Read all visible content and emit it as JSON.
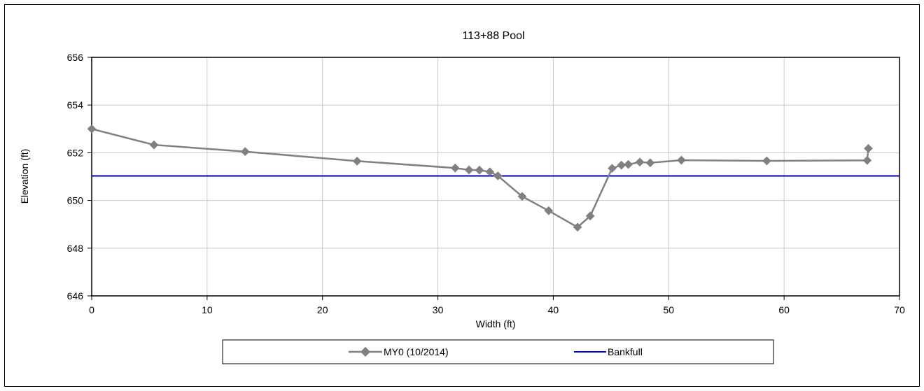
{
  "chart_data": {
    "type": "line",
    "title": "113+88 Pool",
    "xlabel": "Width (ft)",
    "ylabel": "Elevation (ft)",
    "xlim": [
      0,
      70
    ],
    "ylim": [
      646,
      656
    ],
    "xticks": [
      0,
      10,
      20,
      30,
      40,
      50,
      60,
      70
    ],
    "yticks": [
      646,
      648,
      650,
      652,
      654,
      656
    ],
    "grid": true,
    "legend_position": "bottom",
    "series": [
      {
        "name": "MY0 (10/2014)",
        "color": "#808080",
        "marker": "diamond",
        "x": [
          0,
          5.4,
          13.3,
          23.0,
          31.5,
          32.7,
          33.6,
          34.5,
          35.2,
          37.3,
          39.6,
          42.1,
          43.2,
          45.1,
          45.9,
          46.5,
          47.5,
          48.4,
          51.1,
          58.5,
          67.2,
          67.3
        ],
        "y": [
          653.0,
          652.33,
          652.05,
          651.65,
          651.36,
          651.28,
          651.27,
          651.2,
          651.03,
          650.17,
          649.57,
          648.88,
          649.35,
          651.35,
          651.48,
          651.51,
          651.61,
          651.58,
          651.69,
          651.66,
          651.68,
          652.18
        ]
      },
      {
        "name": "Bankfull",
        "color": "#0000c8",
        "marker": "none",
        "x": [
          0,
          70
        ],
        "y": [
          651.03,
          651.03
        ]
      }
    ]
  }
}
